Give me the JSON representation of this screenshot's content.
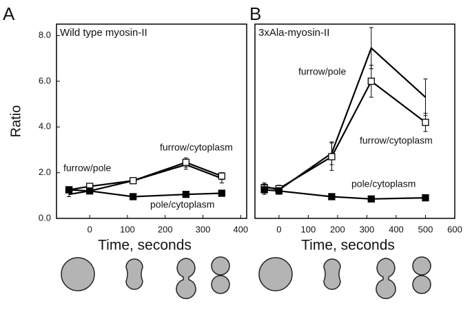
{
  "chart_data": [
    {
      "type": "line",
      "panel": "A",
      "title": "Wild type myosin-II",
      "y_label": "Ratio",
      "x_label": "Time, seconds",
      "xlim": [
        -88,
        416
      ],
      "xticks": [
        0,
        100,
        200,
        300,
        400
      ],
      "ylim": [
        0,
        8.5
      ],
      "yticks": [
        {
          "value": 0,
          "label": "0.0"
        },
        {
          "value": 2,
          "label": "2.0"
        },
        {
          "value": 4,
          "label": "4.0"
        },
        {
          "value": 6,
          "label": "6.0"
        },
        {
          "value": 8,
          "label": "8.0"
        }
      ],
      "x": [
        -55,
        0,
        115,
        255,
        350
      ],
      "series": [
        {
          "name": "furrow/pole",
          "color": "#000000",
          "marker": "none",
          "values": [
            1.05,
            1.2,
            1.65,
            2.35,
            1.75
          ],
          "errors": [
            0.1,
            0.1,
            0.1,
            0.2,
            0.2
          ]
        },
        {
          "name": "furrow/cytoplasm",
          "color": "#000000",
          "marker": "open-square",
          "values": [
            1.25,
            1.4,
            1.65,
            2.45,
            1.85
          ],
          "errors": [
            0.1,
            0.1,
            0.1,
            0.2,
            0.15
          ]
        },
        {
          "name": "pole/cytoplasm",
          "color": "#000000",
          "marker": "filled-square",
          "values": [
            1.25,
            1.2,
            0.95,
            1.05,
            1.1
          ],
          "errors": [
            0.05,
            0.05,
            0.05,
            0.05,
            0.05
          ]
        }
      ]
    },
    {
      "type": "line",
      "panel": "B",
      "title": "3xAla-myosin-II",
      "x_label": "Time, seconds",
      "xlim": [
        -82,
        600
      ],
      "xticks": [
        0,
        100,
        200,
        300,
        400,
        500,
        600
      ],
      "ylim": [
        0,
        8.5
      ],
      "yticks": [],
      "x": [
        -50,
        0,
        180,
        315,
        500
      ],
      "series": [
        {
          "name": "furrow/pole",
          "color": "#000000",
          "marker": "none",
          "values": [
            1.4,
            1.25,
            2.85,
            7.45,
            5.3
          ],
          "errors": [
            0.15,
            0.15,
            0.5,
            0.9,
            0.8
          ]
        },
        {
          "name": "furrow/cytoplasm",
          "color": "#000000",
          "marker": "open-square",
          "values": [
            1.35,
            1.3,
            2.7,
            6.0,
            4.2
          ],
          "errors": [
            0.15,
            0.15,
            0.6,
            0.7,
            0.4
          ]
        },
        {
          "name": "pole/cytoplasm",
          "color": "#000000",
          "marker": "filled-square",
          "values": [
            1.25,
            1.2,
            0.95,
            0.85,
            0.9
          ],
          "errors": [
            0.2,
            0.15,
            0.05,
            0.05,
            0.05
          ]
        }
      ]
    }
  ]
}
